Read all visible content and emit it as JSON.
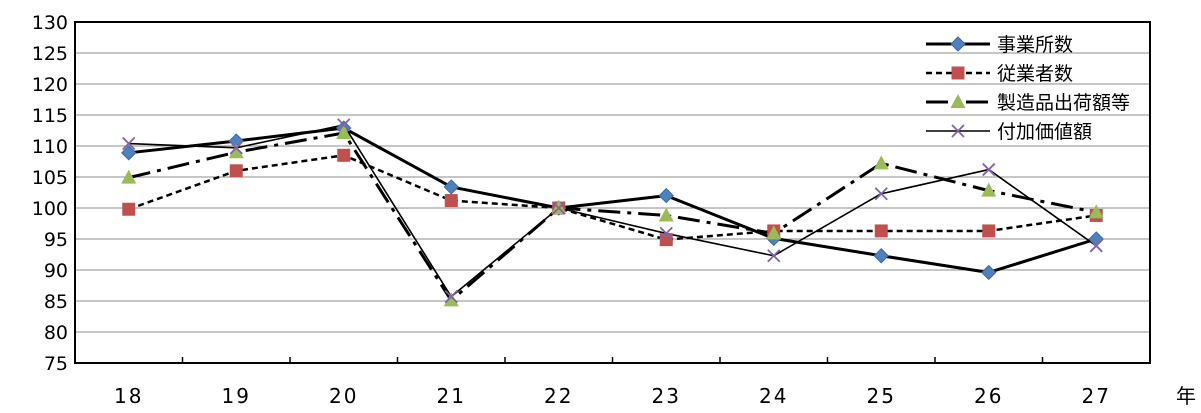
{
  "chart_data": {
    "type": "line",
    "categories": [
      "18",
      "19",
      "20",
      "21",
      "22",
      "23",
      "24",
      "25",
      "26",
      "27"
    ],
    "x_unit": "年",
    "ylim": [
      75,
      130
    ],
    "yticks": [
      75,
      80,
      85,
      90,
      95,
      100,
      105,
      110,
      115,
      120,
      125,
      130
    ],
    "grid": true,
    "legend_position": "top-right",
    "series": [
      {
        "name": "事業所数",
        "values": [
          108.9,
          110.8,
          112.9,
          103.4,
          100.0,
          102.0,
          95.1,
          92.3,
          89.6,
          95.0
        ],
        "color": "#000000",
        "marker": "diamond",
        "marker_color": "#4F81BD",
        "line_style": "solid-thick"
      },
      {
        "name": "従業者数",
        "values": [
          99.8,
          106.0,
          108.5,
          101.2,
          100.0,
          94.9,
          96.3,
          96.3,
          96.3,
          98.8
        ],
        "color": "#000000",
        "marker": "square",
        "marker_color": "#C0504D",
        "line_style": "dashed"
      },
      {
        "name": "製造品出荷額等",
        "values": [
          104.9,
          109.0,
          112.1,
          85.1,
          100.0,
          98.8,
          95.9,
          107.2,
          102.8,
          99.3
        ],
        "color": "#000000",
        "marker": "triangle",
        "marker_color": "#9BBB59",
        "line_style": "dash-dot-thick"
      },
      {
        "name": "付加価値額",
        "values": [
          110.4,
          109.7,
          113.4,
          85.7,
          100.0,
          95.9,
          92.3,
          102.3,
          106.2,
          93.9
        ],
        "color": "#000000",
        "marker": "x",
        "marker_color": "#8064A2",
        "line_style": "solid-thin"
      }
    ]
  }
}
